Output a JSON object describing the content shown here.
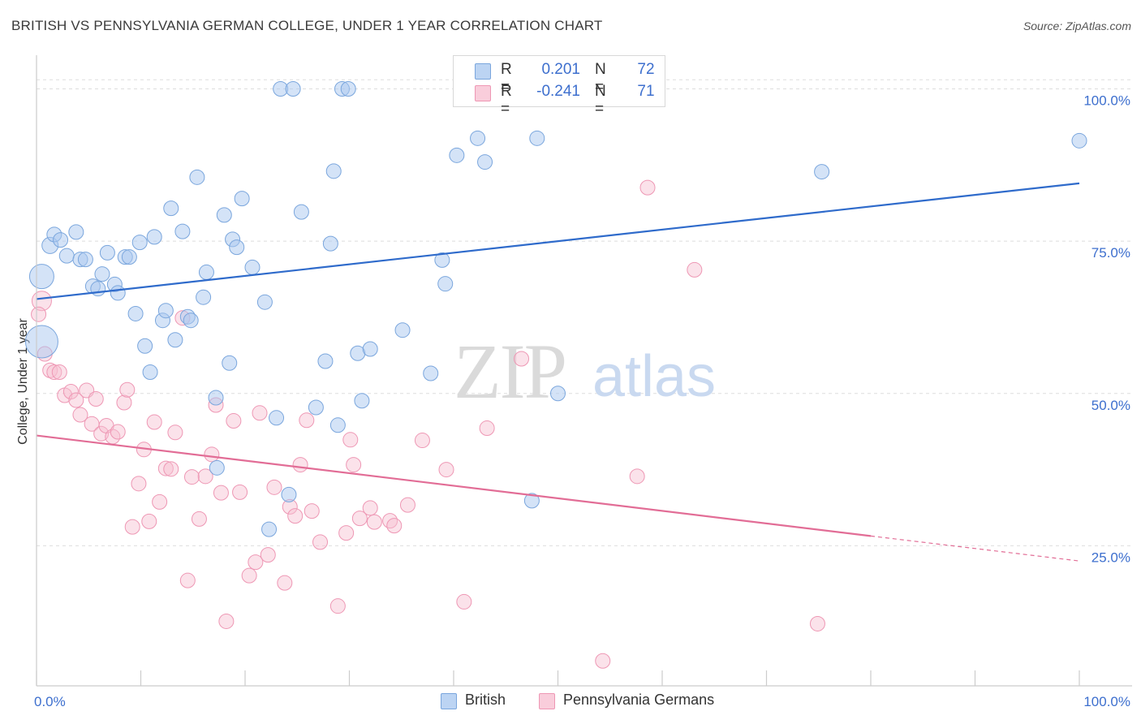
{
  "header": {
    "title": "BRITISH VS PENNSYLVANIA GERMAN COLLEGE, UNDER 1 YEAR CORRELATION CHART",
    "source": "Source: ZipAtlas.com"
  },
  "watermark": {
    "zip": "ZIP",
    "atlas": "atlas"
  },
  "legend": {
    "rows": [
      {
        "r_label": "R =",
        "r_value": "0.201",
        "n_label": "N =",
        "n_value": "72"
      },
      {
        "r_label": "R =",
        "r_value": "-0.241",
        "n_label": "N =",
        "n_value": "71"
      }
    ]
  },
  "bottom_legend": {
    "british": "British",
    "penn": "Pennsylvania Germans"
  },
  "colors": {
    "british_fill": "#a9c8ef",
    "british_stroke": "#7aa6dd",
    "british_line": "#2f6bcb",
    "penn_fill": "#f7bfd1",
    "penn_stroke": "#ee97b4",
    "penn_line": "#e26d96",
    "tick_label": "#3d6fce",
    "grid": "#dedede"
  },
  "chart_data": {
    "type": "scatter",
    "title": "BRITISH VS PENNSYLVANIA GERMAN COLLEGE, UNDER 1 YEAR CORRELATION CHART",
    "xlabel": "",
    "ylabel": "College, Under 1 year",
    "xlim": [
      0,
      100
    ],
    "ylim": [
      2,
      105
    ],
    "x_tick_labels": [
      "0.0%",
      "100.0%"
    ],
    "y_ticks": [
      25,
      50,
      75,
      100
    ],
    "y_tick_labels": [
      "25.0%",
      "50.0%",
      "75.0%",
      "100.0%"
    ],
    "grid": true,
    "legend_position": "top-center",
    "series": [
      {
        "name": "British",
        "r": 0.201,
        "n": 72,
        "trend": {
          "x": [
            0,
            100
          ],
          "y": [
            65.5,
            84.5
          ]
        },
        "points": [
          [
            0.5,
            69.2,
            15
          ],
          [
            0.5,
            58.5,
            20
          ],
          [
            1.3,
            74.3,
            10
          ],
          [
            1.7,
            76.1,
            9
          ],
          [
            2.3,
            75.2,
            9
          ],
          [
            2.9,
            72.6,
            9
          ],
          [
            3.8,
            76.5,
            9
          ],
          [
            4.2,
            72.0,
            9
          ],
          [
            4.7,
            72.0,
            9
          ],
          [
            5.4,
            67.6,
            9
          ],
          [
            5.9,
            67.2,
            9
          ],
          [
            6.3,
            69.6,
            9
          ],
          [
            6.8,
            73.1,
            9
          ],
          [
            7.5,
            67.9,
            9
          ],
          [
            7.8,
            66.5,
            9
          ],
          [
            8.5,
            72.4,
            9
          ],
          [
            8.9,
            72.4,
            9
          ],
          [
            9.5,
            63.1,
            9
          ],
          [
            9.9,
            74.8,
            9
          ],
          [
            10.4,
            57.8,
            9
          ],
          [
            10.9,
            53.5,
            9
          ],
          [
            11.3,
            75.7,
            9
          ],
          [
            12.1,
            62.0,
            9
          ],
          [
            12.4,
            63.6,
            9
          ],
          [
            12.9,
            80.4,
            9
          ],
          [
            13.3,
            58.8,
            9
          ],
          [
            14.0,
            76.6,
            9
          ],
          [
            14.5,
            62.6,
            9
          ],
          [
            14.8,
            62.0,
            9
          ],
          [
            15.4,
            85.5,
            9
          ],
          [
            16.0,
            65.8,
            9
          ],
          [
            16.3,
            69.9,
            9
          ],
          [
            17.3,
            37.8,
            9
          ],
          [
            17.2,
            49.3,
            9
          ],
          [
            18.0,
            79.3,
            9
          ],
          [
            18.5,
            55.0,
            9
          ],
          [
            18.8,
            75.3,
            9
          ],
          [
            19.2,
            74.0,
            9
          ],
          [
            19.7,
            82.0,
            9
          ],
          [
            20.7,
            70.7,
            9
          ],
          [
            21.9,
            65.0,
            9
          ],
          [
            22.3,
            27.7,
            9
          ],
          [
            23.0,
            46.0,
            9
          ],
          [
            23.4,
            100.0,
            9
          ],
          [
            24.2,
            33.4,
            9
          ],
          [
            24.6,
            100.0,
            9
          ],
          [
            25.4,
            79.8,
            9
          ],
          [
            26.8,
            47.7,
            9
          ],
          [
            27.7,
            55.3,
            9
          ],
          [
            28.2,
            74.6,
            9
          ],
          [
            28.5,
            86.5,
            9
          ],
          [
            28.9,
            44.8,
            9
          ],
          [
            29.3,
            100.0,
            9
          ],
          [
            29.9,
            100.0,
            9
          ],
          [
            30.8,
            56.6,
            9
          ],
          [
            31.2,
            48.8,
            9
          ],
          [
            32.0,
            57.3,
            9
          ],
          [
            35.1,
            60.4,
            9
          ],
          [
            37.8,
            53.3,
            9
          ],
          [
            38.9,
            71.9,
            9
          ],
          [
            39.2,
            68.0,
            9
          ],
          [
            40.3,
            89.1,
            9
          ],
          [
            42.3,
            91.9,
            9
          ],
          [
            43.0,
            88.0,
            9
          ],
          [
            47.5,
            32.4,
            9
          ],
          [
            48.0,
            91.9,
            9
          ],
          [
            49.0,
            100.0,
            9
          ],
          [
            49.4,
            100.0,
            9
          ],
          [
            50.0,
            50.0,
            9
          ],
          [
            51.6,
            100.0,
            9
          ],
          [
            75.3,
            86.4,
            9
          ],
          [
            100.0,
            91.5,
            9
          ]
        ]
      },
      {
        "name": "Pennsylvania Germans",
        "r": -0.241,
        "n": 71,
        "trend": {
          "x": [
            0,
            80
          ],
          "y": [
            43.1,
            26.6
          ]
        },
        "trend_dashed": {
          "x": [
            80,
            100
          ],
          "y": [
            26.6,
            22.5
          ]
        },
        "points": [
          [
            0.5,
            65.2,
            12
          ],
          [
            0.8,
            56.5,
            9
          ],
          [
            1.3,
            53.8,
            9
          ],
          [
            1.7,
            53.5,
            9
          ],
          [
            2.2,
            53.5,
            9
          ],
          [
            2.7,
            49.7,
            9
          ],
          [
            3.3,
            50.3,
            9
          ],
          [
            3.8,
            48.9,
            9
          ],
          [
            4.2,
            46.5,
            9
          ],
          [
            4.8,
            50.5,
            9
          ],
          [
            5.3,
            45.0,
            9
          ],
          [
            5.7,
            49.1,
            9
          ],
          [
            6.2,
            43.4,
            9
          ],
          [
            6.7,
            44.7,
            9
          ],
          [
            7.3,
            42.9,
            9
          ],
          [
            7.8,
            43.7,
            9
          ],
          [
            8.4,
            48.5,
            9
          ],
          [
            8.7,
            50.6,
            9
          ],
          [
            9.2,
            28.1,
            9
          ],
          [
            9.8,
            35.2,
            9
          ],
          [
            10.3,
            40.8,
            9
          ],
          [
            10.8,
            29.0,
            9
          ],
          [
            11.3,
            45.3,
            9
          ],
          [
            11.8,
            32.2,
            9
          ],
          [
            12.4,
            37.7,
            9
          ],
          [
            12.9,
            37.6,
            9
          ],
          [
            13.3,
            43.6,
            9
          ],
          [
            14.0,
            62.4,
            9
          ],
          [
            14.5,
            19.3,
            9
          ],
          [
            14.9,
            36.3,
            9
          ],
          [
            15.6,
            29.4,
            9
          ],
          [
            16.2,
            36.4,
            9
          ],
          [
            16.8,
            40.0,
            9
          ],
          [
            17.2,
            48.1,
            9
          ],
          [
            17.7,
            33.7,
            9
          ],
          [
            18.2,
            12.6,
            9
          ],
          [
            18.9,
            45.5,
            9
          ],
          [
            19.5,
            33.8,
            9
          ],
          [
            20.4,
            20.1,
            9
          ],
          [
            21.0,
            22.3,
            9
          ],
          [
            21.4,
            46.8,
            9
          ],
          [
            22.2,
            23.5,
            9
          ],
          [
            22.8,
            34.6,
            9
          ],
          [
            23.8,
            18.9,
            9
          ],
          [
            24.3,
            31.4,
            9
          ],
          [
            24.8,
            29.9,
            9
          ],
          [
            25.3,
            38.3,
            9
          ],
          [
            25.9,
            45.6,
            9
          ],
          [
            26.4,
            30.7,
            9
          ],
          [
            27.2,
            25.6,
            9
          ],
          [
            28.9,
            15.1,
            9
          ],
          [
            29.7,
            27.1,
            9
          ],
          [
            30.1,
            42.4,
            9
          ],
          [
            30.4,
            38.3,
            9
          ],
          [
            31.0,
            29.5,
            9
          ],
          [
            32.0,
            31.2,
            9
          ],
          [
            32.4,
            28.9,
            9
          ],
          [
            33.9,
            29.1,
            9
          ],
          [
            34.3,
            28.3,
            9
          ],
          [
            35.6,
            31.7,
            9
          ],
          [
            37.0,
            42.3,
            9
          ],
          [
            39.3,
            37.5,
            9
          ],
          [
            41.0,
            15.8,
            9
          ],
          [
            43.2,
            44.3,
            9
          ],
          [
            46.5,
            55.7,
            9
          ],
          [
            54.3,
            6.1,
            9
          ],
          [
            57.6,
            36.4,
            9
          ],
          [
            58.6,
            83.8,
            9
          ],
          [
            63.1,
            70.3,
            9
          ],
          [
            74.9,
            12.2,
            9
          ],
          [
            0.2,
            63.0,
            9
          ]
        ]
      }
    ]
  }
}
